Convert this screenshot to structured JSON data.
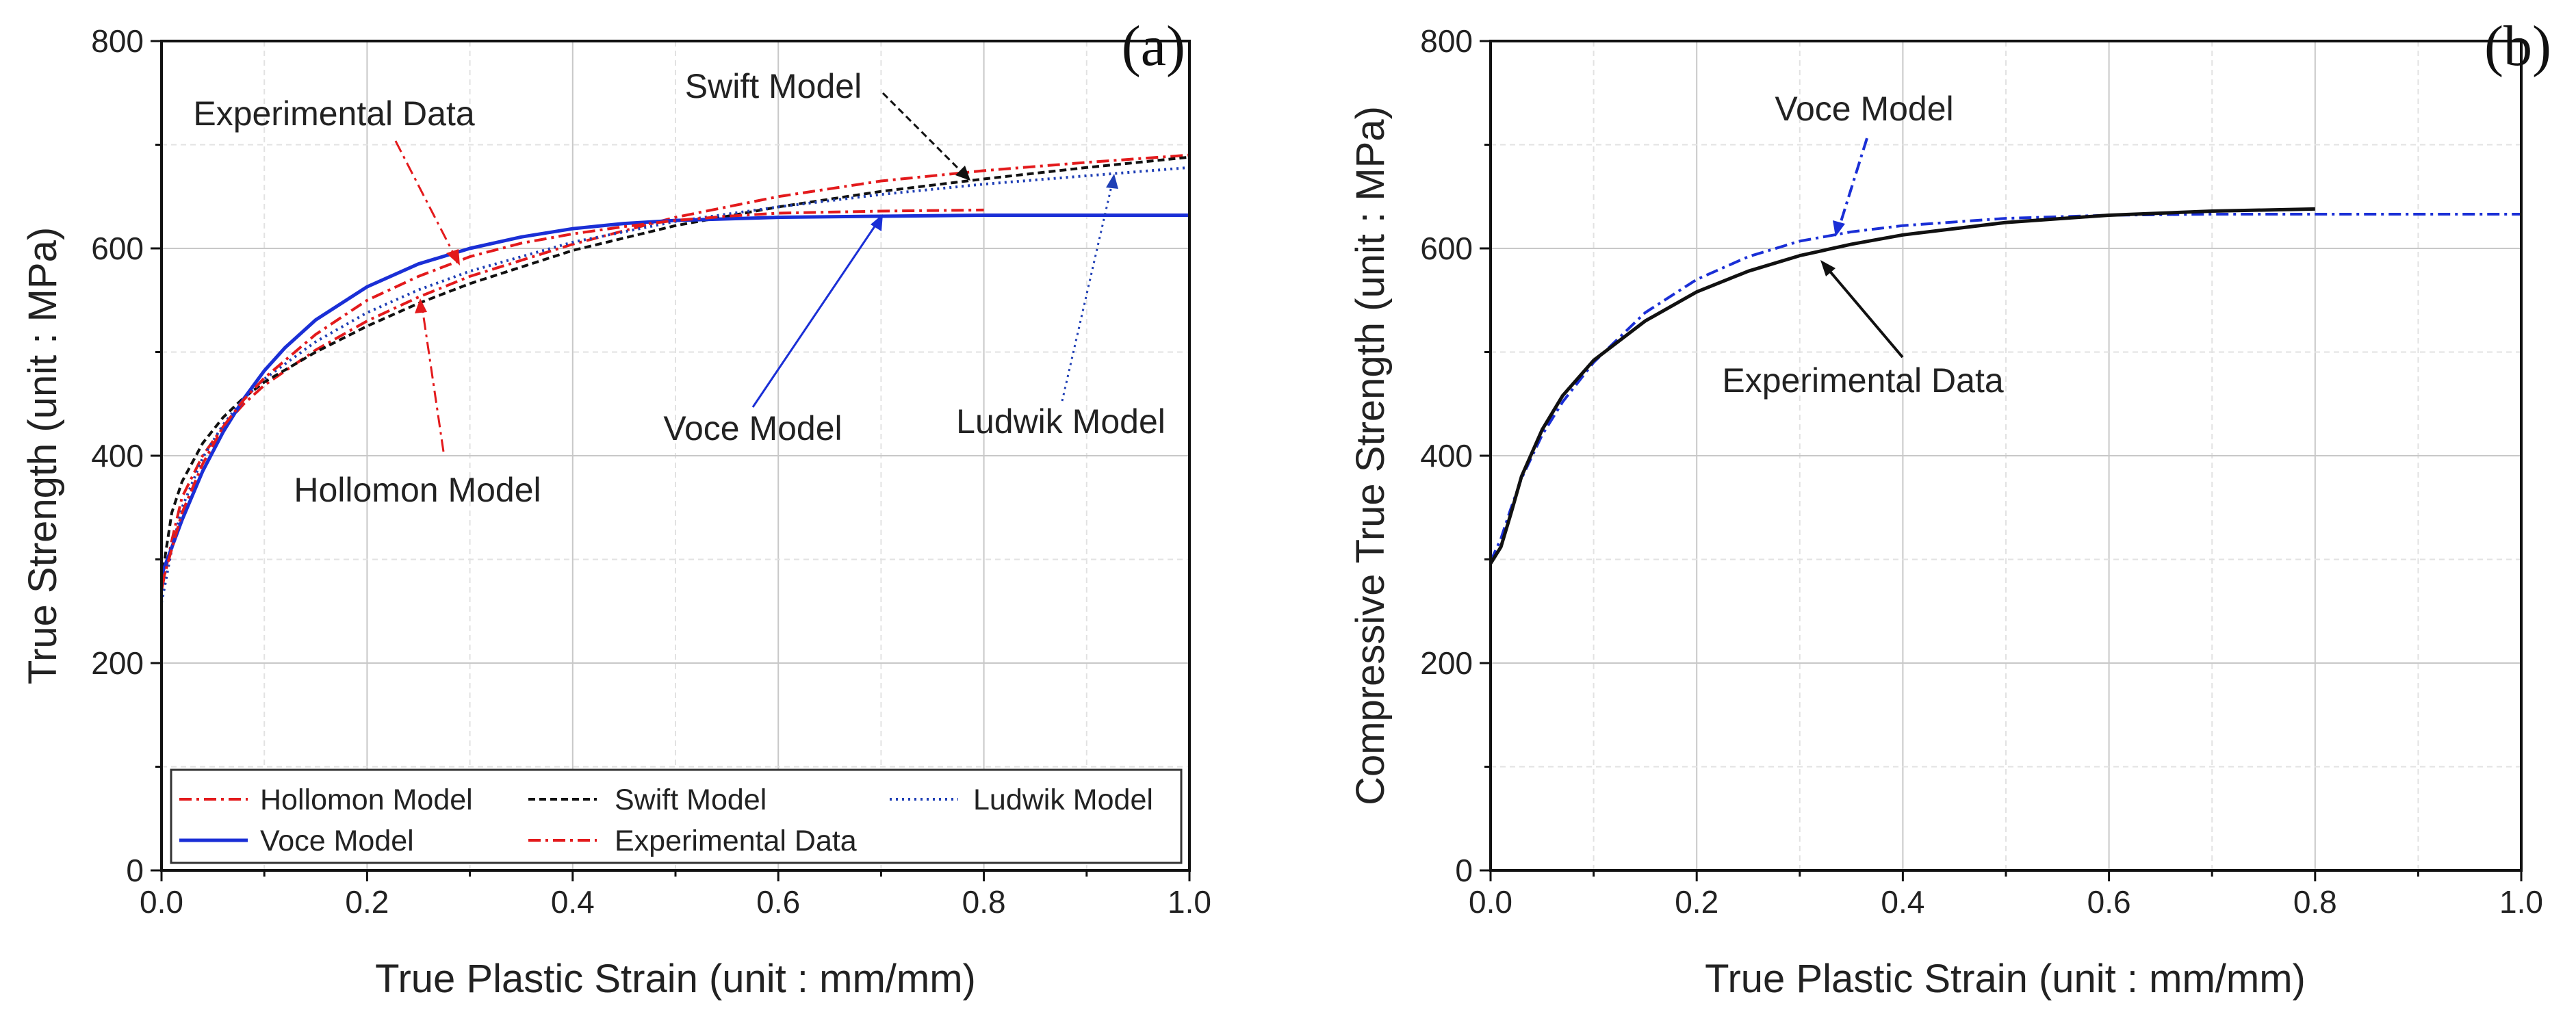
{
  "chart_data": [
    {
      "type": "line",
      "panel_label": "(a)",
      "xlabel": "True Plastic Strain (unit : mm/mm)",
      "ylabel": "True Strength (unit : MPa)",
      "xlim": [
        0,
        1.0
      ],
      "ylim": [
        0,
        800
      ],
      "x_ticks": [
        0.0,
        0.2,
        0.4,
        0.6,
        0.8,
        1.0
      ],
      "x_tick_labels": [
        "0.0",
        "0.2",
        "0.4",
        "0.6",
        "0.8",
        "1.0"
      ],
      "y_ticks": [
        0,
        200,
        400,
        600,
        800
      ],
      "y_tick_labels": [
        "0",
        "200",
        "400",
        "600",
        "800"
      ],
      "grid": true,
      "legend_position": "bottom",
      "series": [
        {
          "name": "Hollomon Model",
          "color": "#e31a1c",
          "dash": "dashdot",
          "x": [
            0.0,
            0.01,
            0.02,
            0.04,
            0.06,
            0.08,
            0.1,
            0.15,
            0.2,
            0.25,
            0.3,
            0.4,
            0.5,
            0.6,
            0.7,
            0.8,
            0.9,
            1.0
          ],
          "y": [
            270,
            318,
            360,
            400,
            428,
            450,
            468,
            502,
            530,
            553,
            573,
            604,
            630,
            650,
            665,
            675,
            683,
            690
          ]
        },
        {
          "name": "Swift Model",
          "color": "#111111",
          "dash": "dash",
          "x": [
            0.0,
            0.01,
            0.02,
            0.04,
            0.06,
            0.08,
            0.1,
            0.15,
            0.2,
            0.25,
            0.3,
            0.4,
            0.5,
            0.6,
            0.7,
            0.8,
            0.9,
            1.0
          ],
          "y": [
            280,
            345,
            375,
            412,
            437,
            456,
            471,
            500,
            525,
            547,
            566,
            598,
            622,
            640,
            655,
            667,
            678,
            688
          ]
        },
        {
          "name": "Ludwik Model",
          "color": "#1f3fb5",
          "dash": "dot",
          "x": [
            0.0,
            0.01,
            0.02,
            0.04,
            0.06,
            0.08,
            0.1,
            0.15,
            0.2,
            0.25,
            0.3,
            0.4,
            0.5,
            0.6,
            0.7,
            0.8,
            0.9,
            1.0
          ],
          "y": [
            258,
            310,
            350,
            398,
            430,
            455,
            474,
            510,
            538,
            560,
            578,
            606,
            626,
            640,
            652,
            662,
            670,
            678
          ]
        },
        {
          "name": "Voce Model",
          "color": "#1a2fd6",
          "dash": "solid",
          "x": [
            0.0,
            0.02,
            0.04,
            0.06,
            0.08,
            0.1,
            0.12,
            0.15,
            0.2,
            0.25,
            0.3,
            0.35,
            0.4,
            0.45,
            0.5,
            0.6,
            0.7,
            0.8,
            0.9,
            1.0
          ],
          "y": [
            285,
            338,
            385,
            423,
            455,
            482,
            504,
            531,
            563,
            585,
            600,
            611,
            619,
            624,
            627,
            630,
            631,
            632,
            632,
            632
          ]
        },
        {
          "name": "Experimental Data",
          "color": "#e31a1c",
          "dash": "dashdot",
          "x": [
            0.0,
            0.02,
            0.04,
            0.06,
            0.08,
            0.1,
            0.15,
            0.2,
            0.25,
            0.3,
            0.35,
            0.4,
            0.45,
            0.5,
            0.55,
            0.6,
            0.7,
            0.8
          ],
          "y": [
            275,
            345,
            392,
            428,
            454,
            475,
            517,
            550,
            573,
            592,
            605,
            614,
            621,
            627,
            631,
            634,
            636,
            637
          ]
        }
      ],
      "annotations": [
        {
          "text": "Experimental Data"
        },
        {
          "text": "Swift Model"
        },
        {
          "text": "Hollomon Model"
        },
        {
          "text": "Voce Model"
        },
        {
          "text": "Ludwik Model"
        }
      ]
    },
    {
      "type": "line",
      "panel_label": "(b)",
      "xlabel": "True Plastic Strain (unit : mm/mm)",
      "ylabel": "Compressive True Strength (unit : MPa)",
      "xlim": [
        0,
        1.0
      ],
      "ylim": [
        0,
        800
      ],
      "x_ticks": [
        0.0,
        0.2,
        0.4,
        0.6,
        0.8,
        1.0
      ],
      "x_tick_labels": [
        "0.0",
        "0.2",
        "0.4",
        "0.6",
        "0.8",
        "1.0"
      ],
      "y_ticks": [
        0,
        200,
        400,
        600,
        800
      ],
      "y_tick_labels": [
        "0",
        "200",
        "400",
        "600",
        "800"
      ],
      "grid": true,
      "series": [
        {
          "name": "Voce Model",
          "color": "#1a2fd6",
          "dash": "dashdot",
          "x": [
            0.0,
            0.01,
            0.02,
            0.03,
            0.05,
            0.07,
            0.1,
            0.15,
            0.2,
            0.25,
            0.3,
            0.35,
            0.4,
            0.5,
            0.6,
            0.7,
            0.8,
            0.9,
            1.0
          ],
          "y": [
            298,
            320,
            350,
            378,
            420,
            452,
            490,
            538,
            570,
            592,
            607,
            616,
            622,
            629,
            632,
            633,
            633,
            633,
            633
          ]
        },
        {
          "name": "Experimental Data",
          "color": "#111111",
          "dash": "solid",
          "x": [
            0.0,
            0.01,
            0.02,
            0.03,
            0.05,
            0.07,
            0.1,
            0.15,
            0.2,
            0.25,
            0.3,
            0.35,
            0.4,
            0.5,
            0.6,
            0.7,
            0.8
          ],
          "y": [
            296,
            312,
            345,
            380,
            425,
            458,
            492,
            530,
            558,
            578,
            593,
            604,
            613,
            625,
            632,
            636,
            638
          ]
        }
      ],
      "annotations": [
        {
          "text": "Voce Model"
        },
        {
          "text": "Experimental Data"
        }
      ]
    }
  ]
}
